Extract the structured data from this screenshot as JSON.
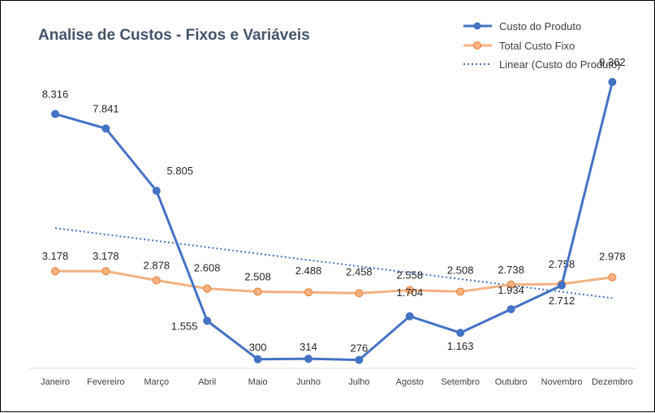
{
  "chart_data": {
    "type": "line",
    "title": "Analise de Custos - Fixos e Variáveis",
    "categories": [
      "Janeiro",
      "Fevereiro",
      "Março",
      "Abril",
      "Maio",
      "Junho",
      "Julho",
      "Agosto",
      "Setembro",
      "Outubro",
      "Novembro",
      "Dezembro"
    ],
    "series": [
      {
        "name": "Custo do Produto",
        "color": "#4472c4",
        "values": [
          8316,
          7841,
          5805,
          1555,
          300,
          314,
          276,
          1704,
          1163,
          1934,
          2712,
          9362
        ],
        "labels": [
          "8.316",
          "7.841",
          "5.805",
          "1.555",
          "300",
          "314",
          "276",
          "1.704",
          "1.163",
          "1.934",
          "2.712",
          "9.362"
        ]
      },
      {
        "name": "Total Custo Fixo",
        "color": "#f4b183",
        "values": [
          3178,
          3178,
          2878,
          2608,
          2508,
          2488,
          2458,
          2558,
          2508,
          2738,
          2758,
          2978
        ],
        "labels": [
          "3.178",
          "3.178",
          "2.878",
          "2.608",
          "2.508",
          "2.488",
          "2.458",
          "2.558",
          "2.508",
          "2.738",
          "2.758",
          "2.978"
        ]
      }
    ],
    "trendline": {
      "name": "Linear (Custo do Produto)",
      "type": "linear",
      "of_series": "Custo do Produto",
      "color": "#4472c4"
    },
    "xlabel": "",
    "ylabel": "",
    "ylim": [
      0,
      10000
    ],
    "grid": false,
    "legend": "top-right"
  }
}
